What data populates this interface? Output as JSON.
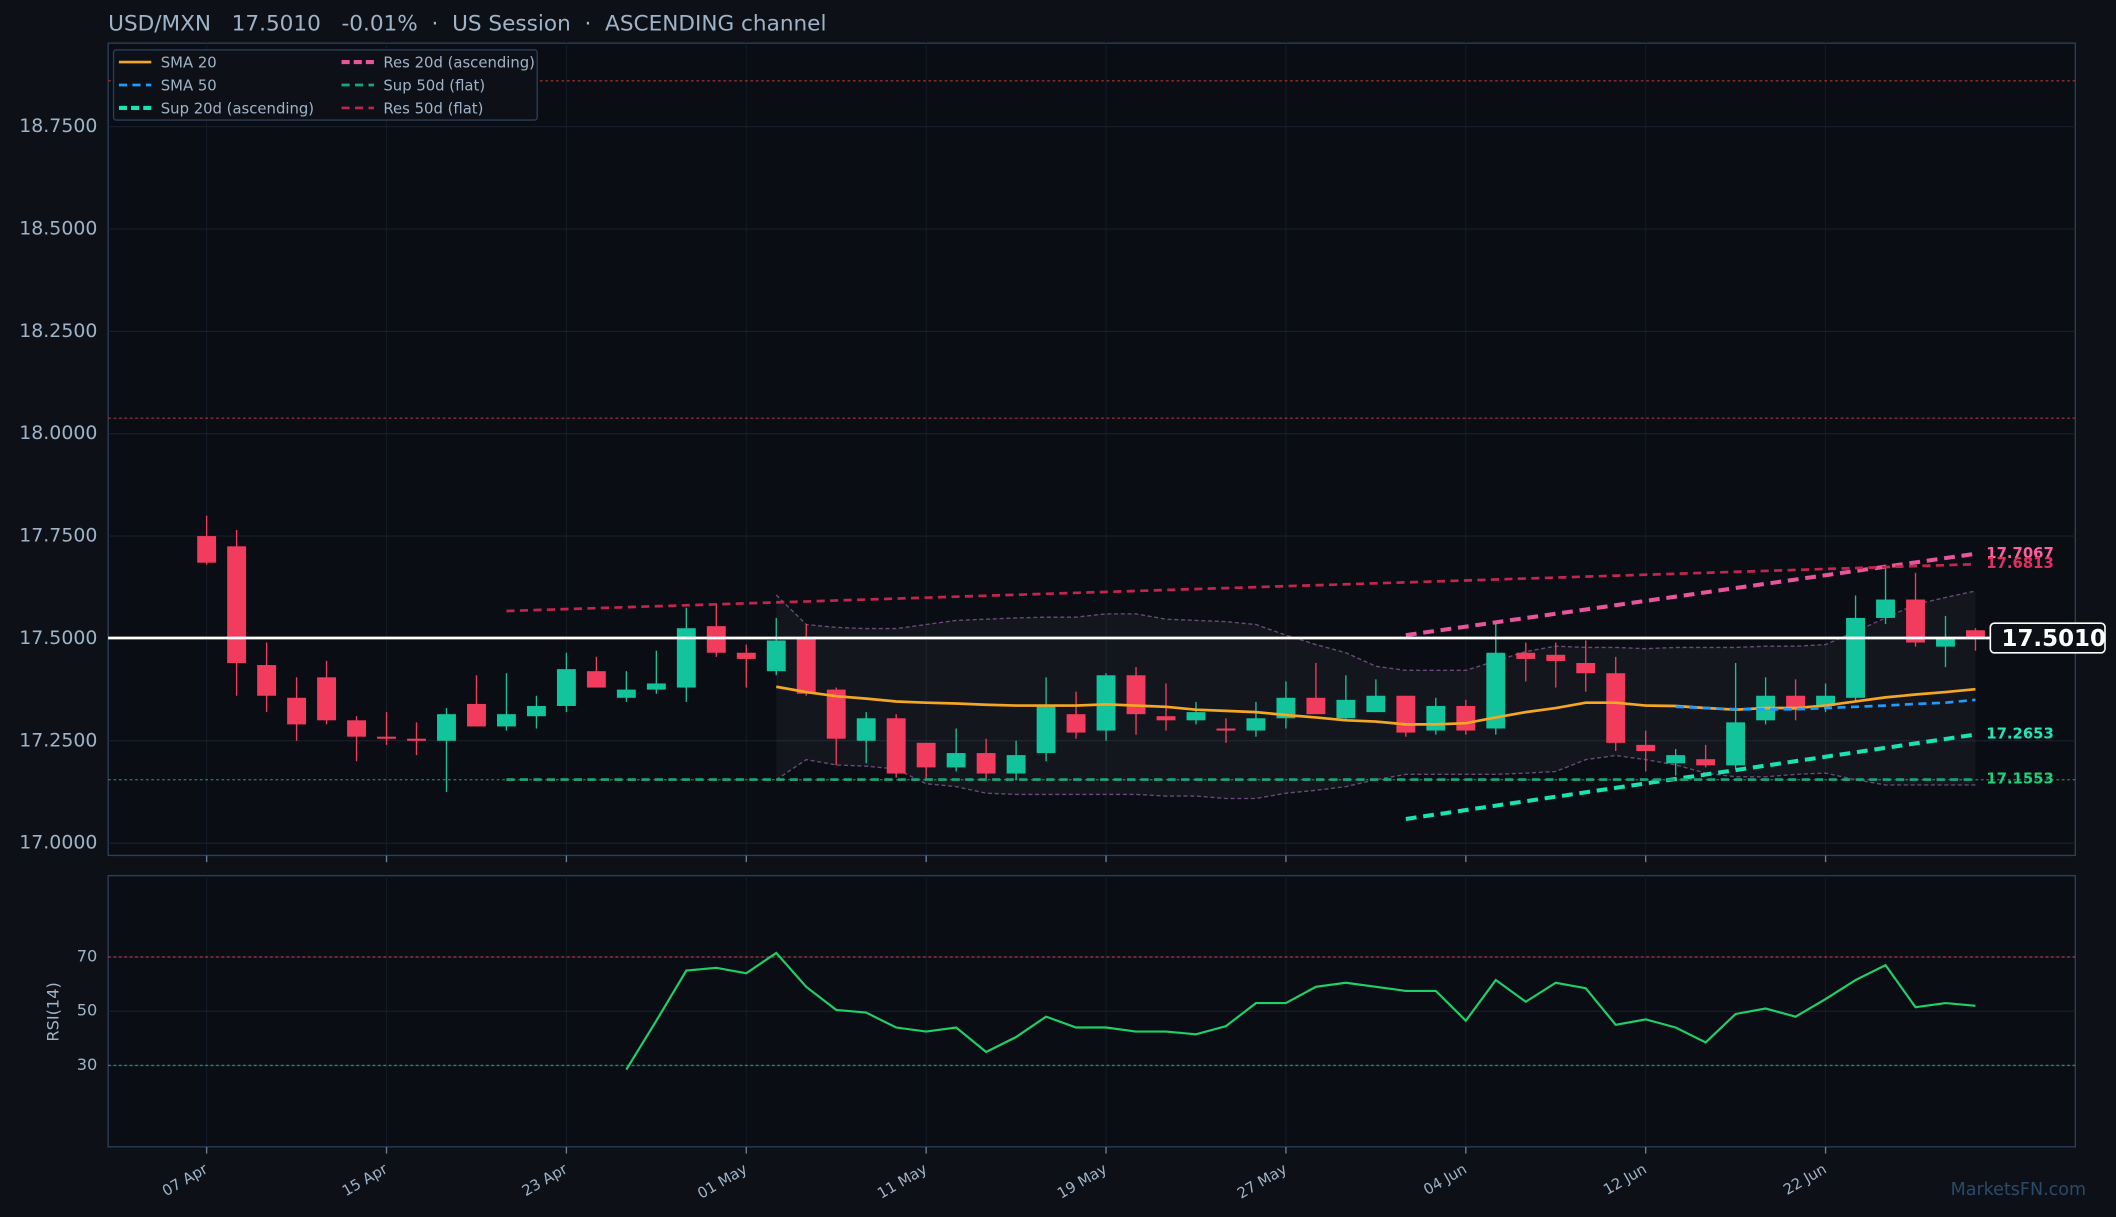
{
  "watermark": "MarketsFN.com",
  "chart_data": [
    {
      "type": "candlestick",
      "title": "USD/MXN   17.5010   -0.01%  ·  US Session  ·  ASCENDING channel",
      "categories": [
        "07 Apr",
        null,
        null,
        null,
        null,
        null,
        "15 Apr",
        null,
        null,
        null,
        null,
        null,
        "23 Apr",
        null,
        null,
        null,
        null,
        null,
        "01 May",
        null,
        null,
        null,
        null,
        null,
        "11 May",
        null,
        null,
        null,
        null,
        null,
        "19 May",
        null,
        null,
        null,
        null,
        null,
        "27 May",
        null,
        null,
        null,
        null,
        null,
        "04 Jun",
        null,
        null,
        null,
        null,
        null,
        "12 Jun",
        null,
        null,
        null,
        null,
        null,
        "22 Jun",
        null,
        null,
        null,
        null,
        null
      ],
      "open": [
        17.75,
        17.725,
        17.435,
        17.355,
        17.405,
        17.3,
        17.26,
        17.255,
        17.25,
        17.34,
        17.285,
        17.31,
        17.335,
        17.42,
        17.355,
        17.375,
        17.38,
        17.53,
        17.465,
        17.42,
        17.5,
        17.375,
        17.25,
        17.305,
        17.245,
        17.185,
        17.22,
        17.17,
        17.22,
        17.315,
        17.275,
        17.41,
        17.31,
        17.3,
        17.28,
        17.275,
        17.305,
        17.355,
        17.305,
        17.32,
        17.36,
        17.275,
        17.335,
        17.28,
        17.465,
        17.46,
        17.44,
        17.415,
        17.24,
        17.195,
        17.205,
        17.19,
        17.3,
        17.36,
        17.335,
        17.355,
        17.55,
        17.595,
        17.48,
        17.52
      ],
      "high": [
        17.8,
        17.765,
        17.49,
        17.405,
        17.445,
        17.31,
        17.32,
        17.295,
        17.33,
        17.41,
        17.415,
        17.36,
        17.465,
        17.455,
        17.42,
        17.47,
        17.575,
        17.585,
        17.485,
        17.55,
        17.535,
        17.38,
        17.32,
        17.315,
        17.245,
        17.28,
        17.255,
        17.25,
        17.405,
        17.37,
        17.415,
        17.43,
        17.39,
        17.345,
        17.305,
        17.345,
        17.395,
        17.44,
        17.41,
        17.4,
        17.36,
        17.355,
        17.35,
        17.54,
        17.49,
        17.49,
        17.495,
        17.455,
        17.275,
        17.23,
        17.24,
        17.44,
        17.405,
        17.4,
        17.39,
        17.605,
        17.68,
        17.66,
        17.555,
        17.525
      ],
      "low": [
        17.68,
        17.36,
        17.32,
        17.25,
        17.29,
        17.2,
        17.24,
        17.215,
        17.125,
        17.285,
        17.275,
        17.28,
        17.32,
        17.38,
        17.345,
        17.365,
        17.345,
        17.455,
        17.38,
        17.41,
        17.36,
        17.19,
        17.195,
        17.16,
        17.155,
        17.175,
        17.155,
        17.155,
        17.2,
        17.255,
        17.25,
        17.265,
        17.275,
        17.29,
        17.245,
        17.26,
        17.28,
        17.315,
        17.3,
        17.32,
        17.26,
        17.265,
        17.265,
        17.265,
        17.395,
        17.38,
        17.37,
        17.225,
        17.175,
        17.165,
        17.185,
        17.18,
        17.29,
        17.3,
        17.32,
        17.345,
        17.535,
        17.48,
        17.43,
        17.47
      ],
      "close": [
        17.685,
        17.44,
        17.36,
        17.29,
        17.3,
        17.26,
        17.255,
        17.25,
        17.315,
        17.285,
        17.315,
        17.335,
        17.425,
        17.38,
        17.375,
        17.39,
        17.525,
        17.465,
        17.45,
        17.495,
        17.365,
        17.255,
        17.305,
        17.17,
        17.185,
        17.22,
        17.17,
        17.215,
        17.335,
        17.27,
        17.41,
        17.315,
        17.3,
        17.32,
        17.275,
        17.305,
        17.355,
        17.315,
        17.35,
        17.36,
        17.27,
        17.335,
        17.275,
        17.465,
        17.45,
        17.445,
        17.415,
        17.245,
        17.225,
        17.215,
        17.19,
        17.295,
        17.36,
        17.325,
        17.36,
        17.55,
        17.595,
        17.49,
        17.5,
        17.501
      ],
      "up_color": "#13c39b",
      "down_color": "#f23c5e",
      "ylim": [
        16.97,
        18.954
      ],
      "yticks": [
        {
          "value": 17,
          "label": "17.0000"
        },
        {
          "value": 17.25,
          "label": "17.2500"
        },
        {
          "value": 17.5,
          "label": "17.5000"
        },
        {
          "value": 17.75,
          "label": "17.7500"
        },
        {
          "value": 18,
          "label": "18.0000"
        },
        {
          "value": 18.25,
          "label": "18.2500"
        },
        {
          "value": 18.5,
          "label": "18.5000"
        },
        {
          "value": 18.75,
          "label": "18.7500"
        }
      ],
      "grid": true,
      "last": {
        "value": 17.501,
        "label": "17.5010",
        "color": "#ffffff"
      },
      "levels": [
        {
          "value": 18.862,
          "color": "#8f2f2f"
        },
        {
          "value": 18.038,
          "color": "#8f2f2f"
        },
        {
          "value": 17.155,
          "color": "#1f7a45"
        }
      ],
      "bands": {
        "color": "#6b4a7a",
        "upper": [
          null,
          null,
          null,
          null,
          null,
          null,
          null,
          null,
          null,
          null,
          null,
          null,
          null,
          null,
          null,
          null,
          null,
          null,
          null,
          17.606,
          17.534,
          17.527,
          17.524,
          17.524,
          17.534,
          17.544,
          17.547,
          17.55,
          17.552,
          17.552,
          17.56,
          17.56,
          17.547,
          17.544,
          17.541,
          17.534,
          17.508,
          17.485,
          17.465,
          17.432,
          17.422,
          17.422,
          17.422,
          17.445,
          17.468,
          17.481,
          17.478,
          17.478,
          17.475,
          17.478,
          17.478,
          17.478,
          17.481,
          17.481,
          17.485,
          17.517,
          17.55,
          17.583,
          17.6,
          17.616
        ],
        "lower": [
          null,
          null,
          null,
          null,
          null,
          null,
          null,
          null,
          null,
          null,
          null,
          null,
          null,
          null,
          null,
          null,
          null,
          null,
          null,
          17.155,
          17.204,
          17.191,
          17.188,
          17.181,
          17.145,
          17.138,
          17.122,
          17.119,
          17.119,
          17.119,
          17.119,
          17.119,
          17.115,
          17.115,
          17.109,
          17.109,
          17.122,
          17.129,
          17.138,
          17.155,
          17.168,
          17.168,
          17.168,
          17.168,
          17.171,
          17.175,
          17.204,
          17.214,
          17.204,
          17.191,
          17.171,
          17.162,
          17.162,
          17.168,
          17.171,
          17.155,
          17.142,
          17.142,
          17.142,
          17.142
        ]
      },
      "series": [
        {
          "name": "SMA 20",
          "color": "#f5a623",
          "style": "solid",
          "width": 2,
          "values": [
            null,
            null,
            null,
            null,
            null,
            null,
            null,
            null,
            null,
            null,
            null,
            null,
            null,
            null,
            null,
            null,
            null,
            null,
            null,
            17.382,
            17.369,
            17.359,
            17.353,
            17.346,
            17.343,
            17.341,
            17.338,
            17.336,
            17.336,
            17.336,
            17.339,
            17.336,
            17.333,
            17.326,
            17.323,
            17.32,
            17.313,
            17.307,
            17.3,
            17.297,
            17.29,
            17.29,
            17.293,
            17.307,
            17.32,
            17.33,
            17.343,
            17.343,
            17.336,
            17.335,
            17.33,
            17.326,
            17.33,
            17.33,
            17.336,
            17.346,
            17.356,
            17.363,
            17.369,
            17.376
          ]
        },
        {
          "name": "SMA 50",
          "color": "#1e9bff",
          "style": "dashed",
          "width": 2,
          "values": [
            null,
            null,
            null,
            null,
            null,
            null,
            null,
            null,
            null,
            null,
            null,
            null,
            null,
            null,
            null,
            null,
            null,
            null,
            null,
            null,
            null,
            null,
            null,
            null,
            null,
            null,
            null,
            null,
            null,
            null,
            null,
            null,
            null,
            null,
            null,
            null,
            null,
            null,
            null,
            null,
            null,
            null,
            null,
            null,
            null,
            null,
            null,
            null,
            null,
            17.333,
            17.33,
            17.327,
            17.327,
            17.327,
            17.33,
            17.333,
            17.336,
            17.34,
            17.343,
            17.35
          ]
        }
      ],
      "lines": [
        {
          "name": "Sup 20d (ascending)",
          "color": "#19e3b1",
          "style": "dashed",
          "width": 3,
          "x": [
            40,
            59
          ],
          "values": [
            17.059,
            17.2653
          ]
        },
        {
          "name": "Res 20d (ascending)",
          "color": "#e8559a",
          "style": "dashed",
          "width": 3,
          "x": [
            40,
            59
          ],
          "values": [
            17.508,
            17.7067
          ]
        },
        {
          "name": "Sup 50d (flat)",
          "color": "#17a97a",
          "style": "dashed",
          "width": 2,
          "x": [
            10,
            59
          ],
          "values": [
            17.1553,
            17.1553
          ]
        },
        {
          "name": "Res 50d (flat)",
          "color": "#c2264f",
          "style": "dashed",
          "width": 2,
          "x": [
            10,
            59
          ],
          "values": [
            17.567,
            17.6813
          ]
        }
      ],
      "end_label_colors": [
        "#21e6b8",
        "#ff5fa0",
        "#21d07a",
        "#e0305f"
      ]
    },
    {
      "type": "line",
      "ylabel": "RSI(14)",
      "ylim": [
        0,
        100
      ],
      "yticks": [
        30,
        50,
        70
      ],
      "grid": true,
      "levels": [
        {
          "value": 70,
          "color": "#b3344a"
        },
        {
          "value": 30,
          "color": "#1b8a7a"
        }
      ],
      "series": [
        {
          "color": "#1fcf6a",
          "values": [
            null,
            null,
            null,
            null,
            null,
            null,
            null,
            null,
            null,
            null,
            null,
            null,
            null,
            null,
            28.5,
            46.5,
            65,
            66,
            64,
            71.5,
            59,
            50.5,
            49.5,
            44,
            42.5,
            44,
            35,
            40.5,
            48,
            44,
            44,
            42.5,
            42.5,
            41.5,
            44.5,
            53,
            53,
            59,
            60.5,
            59,
            57.5,
            57.5,
            46.5,
            61.5,
            53.5,
            60.5,
            58.5,
            45,
            47,
            44,
            38.5,
            49,
            51,
            48,
            54.5,
            61.5,
            67,
            51.5,
            53,
            52
          ]
        }
      ]
    }
  ]
}
